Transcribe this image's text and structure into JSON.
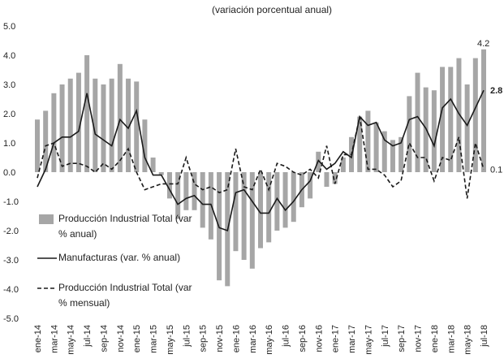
{
  "chart_data": {
    "type": "bar-line",
    "title": "(variación porcentual anual)",
    "categories": [
      "ene-14",
      null,
      "mar-14",
      null,
      "may-14",
      null,
      "jul-14",
      null,
      "sep-14",
      null,
      "nov-14",
      null,
      "ene-15",
      null,
      "mar-15",
      null,
      "may-15",
      null,
      "jul-15",
      null,
      "sep-15",
      null,
      "nov-15",
      null,
      "ene-16",
      null,
      "mar-16",
      null,
      "may-16",
      null,
      "jul-16",
      null,
      "sep-16",
      null,
      "nov-16",
      null,
      "ene-17",
      null,
      "mar-17",
      null,
      "may-17",
      null,
      "jul-17",
      null,
      "sep-17",
      null,
      "nov-17",
      null,
      "ene-18",
      null,
      "mar-18",
      null,
      "may-18",
      null,
      "jul-18"
    ],
    "series": [
      {
        "name": "Producción Industrial Total (var % anual)",
        "type": "bar",
        "color": "#a6a6a6",
        "values": [
          1.8,
          2.1,
          2.7,
          3.0,
          3.2,
          3.4,
          4.0,
          3.2,
          3.0,
          3.2,
          3.7,
          3.2,
          3.1,
          1.8,
          0.5,
          -0.1,
          -0.9,
          -1.6,
          -1.3,
          -1.3,
          -1.9,
          -2.3,
          -3.7,
          -3.9,
          -2.7,
          -3.0,
          -3.3,
          -2.6,
          -2.4,
          -2.0,
          -1.9,
          -1.7,
          -1.2,
          -0.9,
          0.7,
          -0.5,
          -0.4,
          0.5,
          1.2,
          1.9,
          2.1,
          1.7,
          1.4,
          1.1,
          1.2,
          2.6,
          3.4,
          2.9,
          2.8,
          3.6,
          3.6,
          3.9,
          3.0,
          3.9,
          4.2
        ]
      },
      {
        "name": "Manufacturas (var. % anual)",
        "type": "line",
        "color": "#1a1a1a",
        "values": [
          -0.5,
          0.1,
          1.0,
          1.2,
          1.2,
          1.4,
          2.7,
          1.3,
          1.1,
          0.9,
          1.8,
          1.5,
          2.1,
          0.5,
          -0.1,
          -0.1,
          -0.6,
          -1.1,
          -0.9,
          -0.8,
          -1.1,
          -1.1,
          -1.9,
          -2.0,
          -0.7,
          -0.6,
          -1.0,
          -1.4,
          -1.4,
          -0.9,
          -1.3,
          -1.0,
          -0.6,
          -0.3,
          0.4,
          0.1,
          0.3,
          0.7,
          0.5,
          1.9,
          1.6,
          1.7,
          1.1,
          0.9,
          1.0,
          1.8,
          1.9,
          1.5,
          0.9,
          2.2,
          2.5,
          2.0,
          1.6,
          2.2,
          2.8
        ]
      },
      {
        "name": "Producción Industrial Total (var % mensual)",
        "type": "dashed-line",
        "color": "#1a1a1a",
        "values": [
          -0.2,
          0.9,
          1.0,
          0.2,
          0.3,
          0.3,
          0.2,
          0.0,
          0.3,
          0.1,
          0.4,
          0.8,
          0.0,
          -0.6,
          -0.5,
          -0.4,
          -0.4,
          -0.4,
          0.5,
          -0.4,
          -0.6,
          -0.5,
          -0.7,
          -0.6,
          0.8,
          -0.5,
          -0.6,
          0.1,
          -0.6,
          0.3,
          0.2,
          0.0,
          -0.1,
          0.1,
          -0.2,
          0.9,
          -0.4,
          0.6,
          0.6,
          1.9,
          0.1,
          0.1,
          -0.1,
          -0.5,
          -0.3,
          1.0,
          0.5,
          0.5,
          -0.3,
          0.5,
          0.4,
          1.2,
          -0.9,
          1.0,
          0.1
        ]
      }
    ],
    "ylim": [
      -5,
      5
    ],
    "yticks": [
      {
        "value": -5,
        "label": "-5.0"
      },
      {
        "value": -4,
        "label": "-4.0"
      },
      {
        "value": -3,
        "label": "-3.0"
      },
      {
        "value": -2,
        "label": "-2.0"
      },
      {
        "value": -1,
        "label": "-1.0"
      },
      {
        "value": 0,
        "label": "0.0"
      },
      {
        "value": 1,
        "label": "1.0"
      },
      {
        "value": 2,
        "label": "2.0"
      },
      {
        "value": 3,
        "label": "3.0"
      },
      {
        "value": 4,
        "label": "4.0"
      },
      {
        "value": 5,
        "label": "5.0"
      }
    ],
    "grid": false
  }
}
